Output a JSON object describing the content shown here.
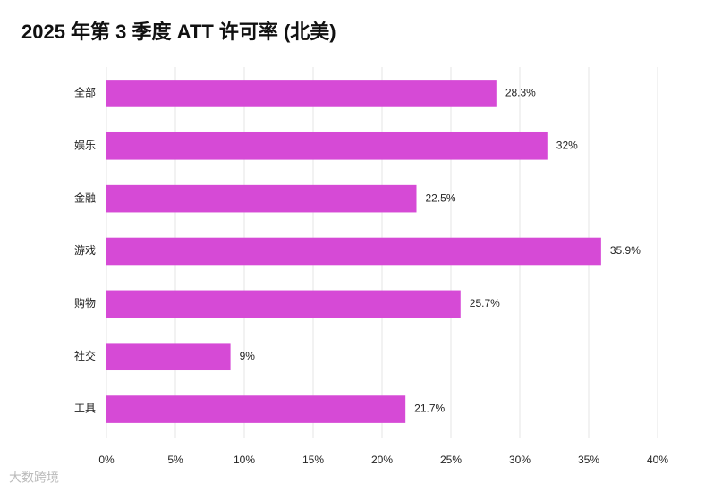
{
  "chart_data": {
    "type": "barh",
    "title": "2025 年第 3 季度 ATT 许可率 (北美)",
    "categories": [
      "全部",
      "娱乐",
      "金融",
      "游戏",
      "购物",
      "社交",
      "工具"
    ],
    "values": [
      28.3,
      32,
      22.5,
      35.9,
      25.7,
      9,
      21.7
    ],
    "value_labels": [
      "28.3%",
      "32%",
      "22.5%",
      "35.9%",
      "25.7%",
      "9%",
      "21.7%"
    ],
    "color": "#d64ad6",
    "xlim": [
      0,
      40
    ],
    "xticks": [
      {
        "value": 0,
        "label": "0%"
      },
      {
        "value": 5,
        "label": "5%"
      },
      {
        "value": 10,
        "label": "10%"
      },
      {
        "value": 15,
        "label": "15%"
      },
      {
        "value": 20,
        "label": "20%"
      },
      {
        "value": 25,
        "label": "25%"
      },
      {
        "value": 30,
        "label": "30%"
      },
      {
        "value": 35,
        "label": "35%"
      },
      {
        "value": 40,
        "label": "40%"
      }
    ],
    "grid": true,
    "watermark": "大数跨境"
  }
}
